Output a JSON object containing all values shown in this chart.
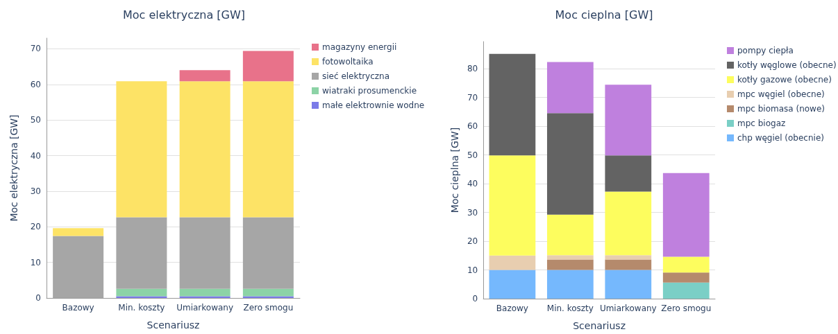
{
  "chart_data": [
    {
      "type": "bar",
      "title": "Moc elektryczna [GW]",
      "xlabel": "Scenariusz",
      "ylabel": "Moc elektryczna [GW]",
      "categories": [
        "Bazowy",
        "Min. koszty",
        "Umiarkowany",
        "Zero smogu"
      ],
      "stacked": true,
      "legend": "right",
      "grid": "y",
      "ylim": [
        0,
        73
      ],
      "yticks": [
        0,
        10,
        20,
        30,
        40,
        50,
        60,
        70
      ],
      "series": [
        {
          "name": "małe elektrownie wodne",
          "color": "#7b7be8",
          "values": [
            0,
            0.5,
            0.5,
            0.5
          ]
        },
        {
          "name": "wiatraki prosumenckie",
          "color": "#8cd3a6",
          "values": [
            0,
            2.1,
            2.1,
            2.1
          ]
        },
        {
          "name": "sieć elektryczna",
          "color": "#a6a6a6",
          "values": [
            17.4,
            20.1,
            20.1,
            20.1
          ]
        },
        {
          "name": "fotowoltaika",
          "color": "#fde366",
          "values": [
            2.2,
            38.2,
            38.2,
            38.2
          ]
        },
        {
          "name": "magazyny energii",
          "color": "#e8728a",
          "values": [
            0,
            0,
            3.1,
            8.5
          ]
        }
      ]
    },
    {
      "type": "bar",
      "title": "Moc cieplna [GW]",
      "xlabel": "Scenariusz",
      "ylabel": "Moc cieplna [GW]",
      "categories": [
        "Bazowy",
        "Min. koszty",
        "Umiarkowany",
        "Zero smogu"
      ],
      "stacked": true,
      "legend": "right",
      "grid": "y",
      "ylim": [
        0,
        89.4
      ],
      "yticks": [
        0,
        10,
        20,
        30,
        40,
        50,
        60,
        70,
        80
      ],
      "series": [
        {
          "name": "chp węgiel (obecnie)",
          "color": "#75b8fd",
          "values": [
            10,
            10,
            10,
            0
          ]
        },
        {
          "name": "mpc biogaz",
          "color": "#7acfc6",
          "values": [
            0,
            0,
            0,
            5.6
          ]
        },
        {
          "name": "mpc biomasa (nowe)",
          "color": "#b58a6c",
          "values": [
            0,
            3.6,
            3.6,
            3.5
          ]
        },
        {
          "name": "mpc węgiel (obecne)",
          "color": "#e8ceb0",
          "values": [
            5,
            1.5,
            1.5,
            0
          ]
        },
        {
          "name": "kotły gazowe (obecne)",
          "color": "#fdfd5e",
          "values": [
            34.8,
            14.1,
            22.1,
            5.5
          ]
        },
        {
          "name": "kotły węglowe (obecne)",
          "color": "#636363",
          "values": [
            35.3,
            35.3,
            12.6,
            0
          ]
        },
        {
          "name": "pompy ciepła",
          "color": "#bf80de",
          "values": [
            0,
            17.8,
            24.6,
            29.1
          ]
        }
      ]
    }
  ]
}
